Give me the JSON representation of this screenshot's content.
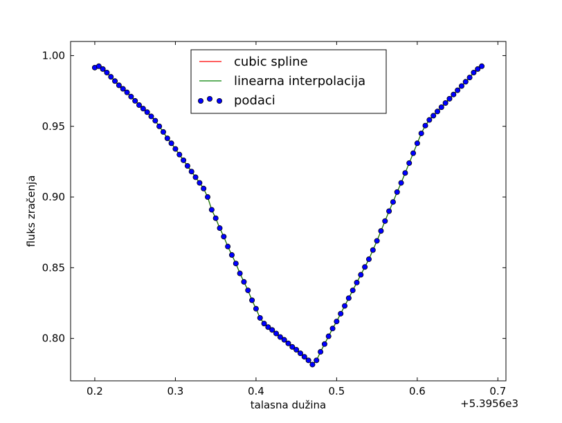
{
  "chart_data": {
    "type": "scatter",
    "title": "",
    "xlabel": "talasna dužina",
    "ylabel": "fluks zračenja",
    "x_offset_label": "+5.3956e3",
    "xlim": [
      0.17,
      0.71
    ],
    "ylim": [
      0.77,
      1.01
    ],
    "xticks": [
      0.2,
      0.3,
      0.4,
      0.5,
      0.6,
      0.7
    ],
    "xtick_labels": [
      "0.2",
      "0.3",
      "0.4",
      "0.5",
      "0.6",
      "0.7"
    ],
    "yticks": [
      0.8,
      0.85,
      0.9,
      0.95,
      1.0
    ],
    "ytick_labels": [
      "0.80",
      "0.85",
      "0.90",
      "0.95",
      "1.00"
    ],
    "grid": false,
    "legend_position": "upper-center",
    "series": [
      {
        "name": "cubic spline",
        "style": "line",
        "color": "#ff0000"
      },
      {
        "name": "linearna interpolacija",
        "style": "line",
        "color": "#008000"
      },
      {
        "name": "podaci",
        "style": "scatter",
        "color": "#0000ff"
      }
    ],
    "x": [
      0.2,
      0.205,
      0.21,
      0.215,
      0.22,
      0.225,
      0.23,
      0.235,
      0.24,
      0.245,
      0.25,
      0.255,
      0.26,
      0.265,
      0.27,
      0.275,
      0.28,
      0.285,
      0.29,
      0.295,
      0.3,
      0.305,
      0.31,
      0.315,
      0.32,
      0.325,
      0.33,
      0.335,
      0.34,
      0.345,
      0.35,
      0.355,
      0.36,
      0.365,
      0.37,
      0.375,
      0.38,
      0.385,
      0.39,
      0.395,
      0.4,
      0.405,
      0.41,
      0.415,
      0.42,
      0.425,
      0.43,
      0.435,
      0.44,
      0.445,
      0.45,
      0.455,
      0.46,
      0.465,
      0.47,
      0.475,
      0.48,
      0.485,
      0.49,
      0.495,
      0.5,
      0.505,
      0.51,
      0.515,
      0.52,
      0.525,
      0.53,
      0.535,
      0.54,
      0.545,
      0.55,
      0.555,
      0.56,
      0.565,
      0.57,
      0.575,
      0.58,
      0.585,
      0.59,
      0.595,
      0.6,
      0.605,
      0.61,
      0.615,
      0.62,
      0.625,
      0.63,
      0.635,
      0.64,
      0.645,
      0.65,
      0.655,
      0.66,
      0.665,
      0.67,
      0.675,
      0.68
    ],
    "y": [
      0.9915,
      0.9925,
      0.9905,
      0.988,
      0.985,
      0.982,
      0.979,
      0.9765,
      0.974,
      0.971,
      0.968,
      0.965,
      0.9625,
      0.96,
      0.957,
      0.954,
      0.95,
      0.946,
      0.9415,
      0.938,
      0.934,
      0.93,
      0.926,
      0.922,
      0.918,
      0.914,
      0.91,
      0.906,
      0.9,
      0.891,
      0.885,
      0.878,
      0.872,
      0.865,
      0.859,
      0.853,
      0.846,
      0.84,
      0.834,
      0.827,
      0.821,
      0.8145,
      0.8105,
      0.808,
      0.806,
      0.8035,
      0.801,
      0.799,
      0.7965,
      0.794,
      0.792,
      0.7895,
      0.787,
      0.7845,
      0.7815,
      0.7845,
      0.7905,
      0.796,
      0.8015,
      0.807,
      0.812,
      0.8175,
      0.823,
      0.8285,
      0.834,
      0.8395,
      0.845,
      0.8505,
      0.856,
      0.8625,
      0.869,
      0.876,
      0.883,
      0.89,
      0.8965,
      0.9035,
      0.91,
      0.917,
      0.924,
      0.931,
      0.938,
      0.945,
      0.9505,
      0.9545,
      0.9575,
      0.9605,
      0.9635,
      0.9665,
      0.9695,
      0.9725,
      0.9755,
      0.9785,
      0.9815,
      0.9845,
      0.988,
      0.9905,
      0.9925
    ]
  }
}
